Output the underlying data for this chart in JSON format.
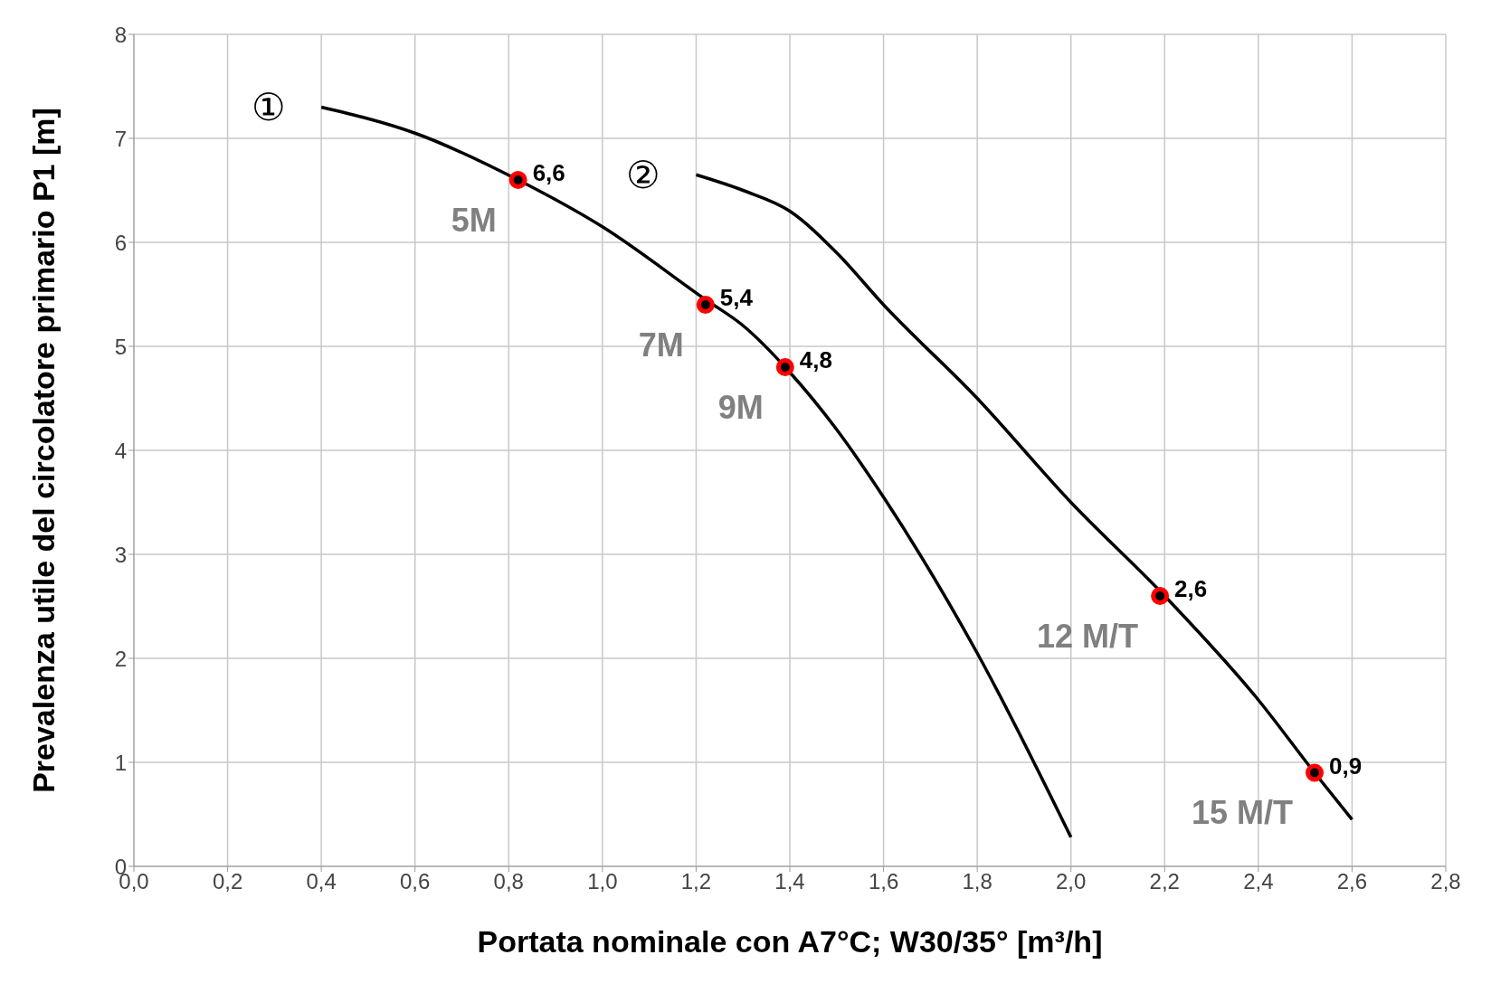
{
  "chart_data": {
    "type": "line",
    "xlabel": "Portata nominale con A7°C; W30/35° [m³/h]",
    "ylabel": "Prevalenza utile del circolatore primario P1 [m]",
    "series": [
      {
        "name": "①",
        "color": "#000000",
        "x": [
          0.4,
          0.6,
          0.82,
          1.0,
          1.22,
          1.3,
          1.4,
          1.5,
          1.6,
          1.8,
          2.0
        ],
        "values": [
          7.3,
          7.05,
          6.6,
          6.15,
          5.45,
          5.2,
          4.75,
          4.2,
          3.55,
          2.05,
          0.28
        ]
      },
      {
        "name": "②",
        "color": "#000000",
        "x": [
          1.2,
          1.3,
          1.4,
          1.5,
          1.6,
          1.8,
          2.0,
          2.2,
          2.4,
          2.52,
          2.6
        ],
        "values": [
          6.65,
          6.5,
          6.3,
          5.9,
          5.4,
          4.5,
          3.5,
          2.6,
          1.6,
          0.9,
          0.45
        ]
      },
      {
        "type": "scatter",
        "marker": "circle",
        "color": "#ff0000",
        "x": [
          0.82,
          1.22,
          1.39,
          2.19,
          2.52
        ],
        "values": [
          6.6,
          5.4,
          4.8,
          2.6,
          0.9
        ],
        "value_labels": [
          "6,6",
          "5,4",
          "4,8",
          "2,6",
          "0,9"
        ]
      }
    ],
    "annotations": [
      {
        "text": "5M",
        "x": 0.82,
        "y": 6.6
      },
      {
        "text": "7M",
        "x": 1.22,
        "y": 5.4
      },
      {
        "text": "9M",
        "x": 1.39,
        "y": 4.8
      },
      {
        "text": "12 M/T",
        "x": 2.19,
        "y": 2.6
      },
      {
        "text": "15 M/T",
        "x": 2.52,
        "y": 0.9
      }
    ],
    "xlim": [
      0,
      2.8
    ],
    "xticks": [
      {
        "value": 0,
        "label": "0,0"
      },
      {
        "value": 0.2,
        "label": "0,2"
      },
      {
        "value": 0.4,
        "label": "0,4"
      },
      {
        "value": 0.6,
        "label": "0,6"
      },
      {
        "value": 0.8,
        "label": "0,8"
      },
      {
        "value": 1.0,
        "label": "1,0"
      },
      {
        "value": 1.2,
        "label": "1,2"
      },
      {
        "value": 1.4,
        "label": "1,4"
      },
      {
        "value": 1.6,
        "label": "1,6"
      },
      {
        "value": 1.8,
        "label": "1,8"
      },
      {
        "value": 2.0,
        "label": "2,0"
      },
      {
        "value": 2.2,
        "label": "2,2"
      },
      {
        "value": 2.4,
        "label": "2,4"
      },
      {
        "value": 2.6,
        "label": "2,6"
      },
      {
        "value": 2.8,
        "label": "2,8"
      }
    ],
    "ylim": [
      0,
      8
    ],
    "yticks": [
      0,
      1,
      2,
      3,
      4,
      5,
      6,
      7,
      8
    ],
    "grid": true,
    "marker": "none",
    "line_style": "solid"
  }
}
